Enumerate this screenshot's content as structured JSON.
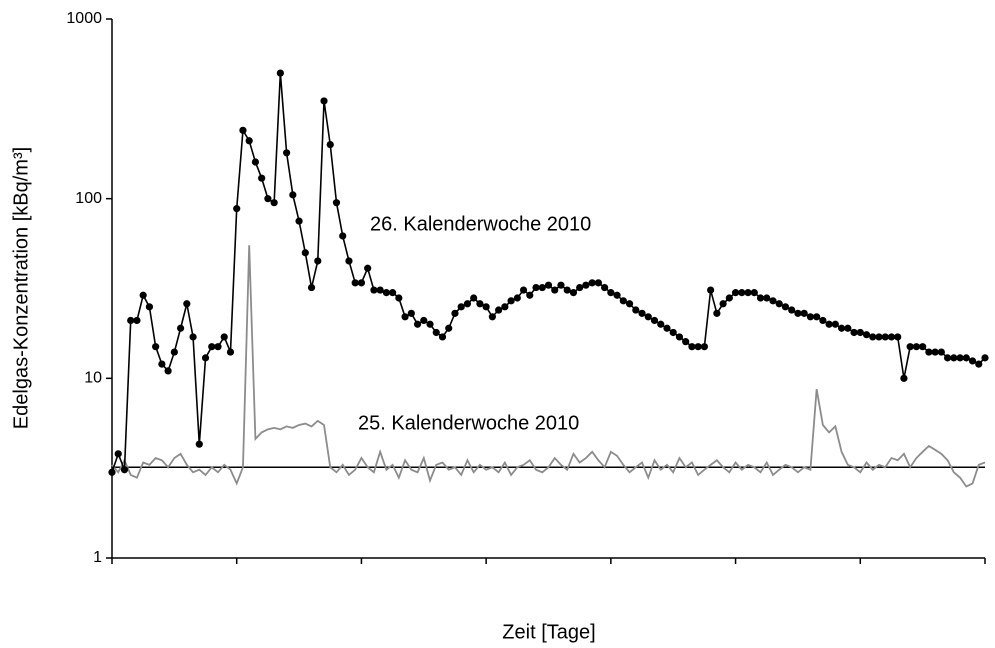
{
  "chart_data": {
    "type": "line",
    "x_label": "Zeit [Tage]",
    "y_label": "Edelgas-Konzentration [kBq/m³]",
    "log_y": true,
    "xlim": [
      0,
      7
    ],
    "xticks": [
      0,
      1,
      2,
      3,
      4,
      5,
      6,
      7
    ],
    "ylim": [
      1,
      1000
    ],
    "yticks": [
      1,
      10,
      100,
      1000
    ],
    "reference_line": 3.2,
    "x": [
      0,
      0.05,
      0.1,
      0.15,
      0.2,
      0.25,
      0.3,
      0.35,
      0.4,
      0.45,
      0.5,
      0.55,
      0.6,
      0.65,
      0.7,
      0.75,
      0.8,
      0.85,
      0.9,
      0.95,
      1,
      1.05,
      1.1,
      1.15,
      1.2,
      1.25,
      1.3,
      1.35,
      1.4,
      1.45,
      1.5,
      1.55,
      1.6,
      1.65,
      1.7,
      1.75,
      1.8,
      1.85,
      1.9,
      1.95,
      2,
      2.05,
      2.1,
      2.15,
      2.2,
      2.25,
      2.3,
      2.35,
      2.4,
      2.45,
      2.5,
      2.55,
      2.6,
      2.65,
      2.7,
      2.75,
      2.8,
      2.85,
      2.9,
      2.95,
      3,
      3.05,
      3.1,
      3.15,
      3.2,
      3.25,
      3.3,
      3.35,
      3.4,
      3.45,
      3.5,
      3.55,
      3.6,
      3.65,
      3.7,
      3.75,
      3.8,
      3.85,
      3.9,
      3.95,
      4,
      4.05,
      4.1,
      4.15,
      4.2,
      4.25,
      4.3,
      4.35,
      4.4,
      4.45,
      4.5,
      4.55,
      4.6,
      4.65,
      4.7,
      4.75,
      4.8,
      4.85,
      4.9,
      4.95,
      5,
      5.05,
      5.1,
      5.15,
      5.2,
      5.25,
      5.3,
      5.35,
      5.4,
      5.45,
      5.5,
      5.55,
      5.6,
      5.65,
      5.7,
      5.75,
      5.8,
      5.85,
      5.9,
      5.95,
      6,
      6.05,
      6.1,
      6.15,
      6.2,
      6.25,
      6.3,
      6.35,
      6.4,
      6.45,
      6.5,
      6.55,
      6.6,
      6.65,
      6.7,
      6.75,
      6.8,
      6.85,
      6.9,
      6.95,
      7
    ],
    "series": [
      {
        "name": "26. Kalenderwoche 2010",
        "color": "#000000",
        "markers": true,
        "values": [
          3.0,
          3.8,
          3.1,
          21,
          21,
          29,
          25,
          15,
          12,
          11,
          14,
          19,
          26,
          17,
          4.3,
          13,
          15,
          15,
          17,
          14,
          88,
          240,
          210,
          160,
          130,
          100,
          95,
          500,
          180,
          105,
          75,
          50,
          32,
          45,
          350,
          200,
          95,
          62,
          45,
          34,
          34,
          41,
          31,
          31,
          30,
          30,
          28,
          22,
          23,
          20,
          21,
          20,
          18,
          17,
          19,
          23,
          25,
          26,
          28,
          26,
          25,
          22,
          24,
          25,
          27,
          28,
          31,
          29,
          32,
          32,
          33,
          31,
          33,
          31,
          30,
          32,
          33,
          34,
          34,
          32,
          30,
          29,
          27,
          26,
          24,
          23,
          22,
          21,
          20,
          19,
          18,
          17,
          16,
          15,
          15,
          15,
          31,
          23,
          26,
          28,
          30,
          30,
          30,
          30,
          28,
          28,
          27,
          26,
          25,
          24,
          23,
          23,
          22,
          22,
          21,
          20,
          20,
          19,
          19,
          18,
          18,
          17.5,
          17,
          17,
          17,
          17,
          17,
          10,
          15,
          15,
          15,
          14,
          14,
          14,
          13,
          13,
          13,
          13,
          12.5,
          12,
          13
        ]
      },
      {
        "name": "25. Kalenderwoche 2010",
        "color": "#8c8c8c",
        "markers": false,
        "values": [
          3.3,
          3.0,
          3.5,
          2.9,
          2.8,
          3.4,
          3.3,
          3.6,
          3.5,
          3.2,
          3.6,
          3.8,
          3.3,
          3.0,
          3.1,
          2.9,
          3.2,
          3.0,
          3.3,
          3.1,
          2.6,
          3.2,
          55,
          4.6,
          5.0,
          5.2,
          5.3,
          5.2,
          5.4,
          5.3,
          5.5,
          5.6,
          5.4,
          5.8,
          5.5,
          3.2,
          3.0,
          3.3,
          2.9,
          3.1,
          3.6,
          3.2,
          3.0,
          3.9,
          3.1,
          3.3,
          2.8,
          3.5,
          3.1,
          3.0,
          3.6,
          2.7,
          3.3,
          3.4,
          3.1,
          3.2,
          2.9,
          3.5,
          3.0,
          3.3,
          3.1,
          3.2,
          3.0,
          3.4,
          2.9,
          3.2,
          3.3,
          3.5,
          3.1,
          3.0,
          3.2,
          3.6,
          3.3,
          3.1,
          3.8,
          3.4,
          3.6,
          3.9,
          3.5,
          3.2,
          3.9,
          3.7,
          3.3,
          3.0,
          3.2,
          3.4,
          2.8,
          3.5,
          3.1,
          3.3,
          3.0,
          3.6,
          3.2,
          3.4,
          2.9,
          3.1,
          3.3,
          3.5,
          3.2,
          3.0,
          3.4,
          3.1,
          3.3,
          3.2,
          3.0,
          3.4,
          2.9,
          3.1,
          3.3,
          3.2,
          3.0,
          3.2,
          3.1,
          8.7,
          5.5,
          5.0,
          5.4,
          3.9,
          3.3,
          3.2,
          3.0,
          3.4,
          3.1,
          3.3,
          3.2,
          3.6,
          3.5,
          3.8,
          3.2,
          3.6,
          3.9,
          4.2,
          4.0,
          3.8,
          3.5,
          3.0,
          2.8,
          2.5,
          2.6,
          3.3,
          3.4
        ]
      }
    ]
  }
}
